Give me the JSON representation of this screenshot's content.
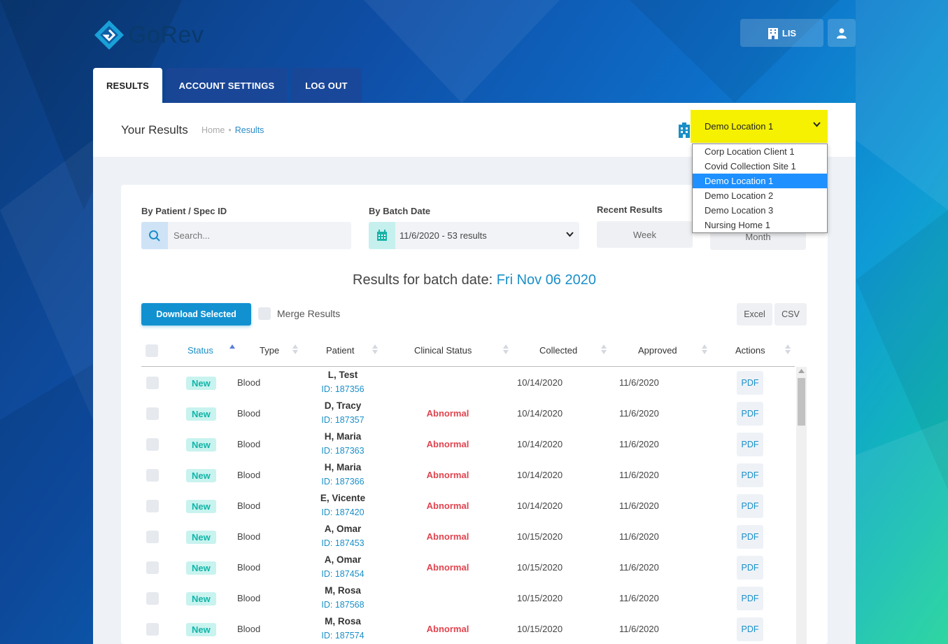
{
  "app": {
    "logo_text": "GoRev"
  },
  "header": {
    "lis_label": "LIS"
  },
  "tabs": [
    {
      "label": "RESULTS",
      "active": true
    },
    {
      "label": "ACCOUNT SETTINGS",
      "active": false
    },
    {
      "label": "LOG OUT",
      "active": false
    }
  ],
  "page": {
    "title": "Your Results",
    "breadcrumb": {
      "home": "Home",
      "separator": "•",
      "current": "Results"
    }
  },
  "location": {
    "selected": "Demo Location 1",
    "options": [
      "Corp Location Client 1",
      "Covid Collection Site 1",
      "Demo Location 1",
      "Demo Location 2",
      "Demo Location 3",
      "Nursing Home 1"
    ]
  },
  "filters": {
    "patient_label": "By Patient / Spec ID",
    "search_placeholder": "Search...",
    "batch_label": "By Batch Date",
    "batch_value": "11/6/2020 - 53 results",
    "recent_label": "Recent Results",
    "week_label": "Week",
    "month_label": "Month"
  },
  "results": {
    "title_prefix": "Results for batch date: ",
    "title_date": "Fri Nov 06 2020",
    "download_label": "Download Selected",
    "merge_label": "Merge Results",
    "excel_label": "Excel",
    "csv_label": "CSV"
  },
  "table": {
    "headers": {
      "status": "Status",
      "type": "Type",
      "patient": "Patient",
      "clinical": "Clinical Status",
      "collected": "Collected",
      "approved": "Approved",
      "actions": "Actions"
    },
    "rows": [
      {
        "status": "New",
        "type": "Blood",
        "name": "L, Test",
        "id": "ID: 187356",
        "clinical": "",
        "collected": "10/14/2020",
        "approved": "11/6/2020",
        "action": "PDF"
      },
      {
        "status": "New",
        "type": "Blood",
        "name": "D, Tracy",
        "id": "ID: 187357",
        "clinical": "Abnormal",
        "collected": "10/14/2020",
        "approved": "11/6/2020",
        "action": "PDF"
      },
      {
        "status": "New",
        "type": "Blood",
        "name": "H, Maria",
        "id": "ID: 187363",
        "clinical": "Abnormal",
        "collected": "10/14/2020",
        "approved": "11/6/2020",
        "action": "PDF"
      },
      {
        "status": "New",
        "type": "Blood",
        "name": "H, Maria",
        "id": "ID: 187366",
        "clinical": "Abnormal",
        "collected": "10/14/2020",
        "approved": "11/6/2020",
        "action": "PDF"
      },
      {
        "status": "New",
        "type": "Blood",
        "name": "E, Vicente",
        "id": "ID: 187420",
        "clinical": "Abnormal",
        "collected": "10/14/2020",
        "approved": "11/6/2020",
        "action": "PDF"
      },
      {
        "status": "New",
        "type": "Blood",
        "name": "A, Omar",
        "id": "ID: 187453",
        "clinical": "Abnormal",
        "collected": "10/15/2020",
        "approved": "11/6/2020",
        "action": "PDF"
      },
      {
        "status": "New",
        "type": "Blood",
        "name": "A, Omar",
        "id": "ID: 187454",
        "clinical": "Abnormal",
        "collected": "10/15/2020",
        "approved": "11/6/2020",
        "action": "PDF"
      },
      {
        "status": "New",
        "type": "Blood",
        "name": "M, Rosa",
        "id": "ID: 187568",
        "clinical": "",
        "collected": "10/15/2020",
        "approved": "11/6/2020",
        "action": "PDF"
      },
      {
        "status": "New",
        "type": "Blood",
        "name": "M, Rosa",
        "id": "ID: 187574",
        "clinical": "Abnormal",
        "collected": "10/15/2020",
        "approved": "11/6/2020",
        "action": "PDF"
      }
    ]
  },
  "colors": {
    "accent": "#1291d1",
    "highlight": "#f5f100",
    "abnormal": "#e0444f",
    "status_new": "#12b5a8"
  }
}
